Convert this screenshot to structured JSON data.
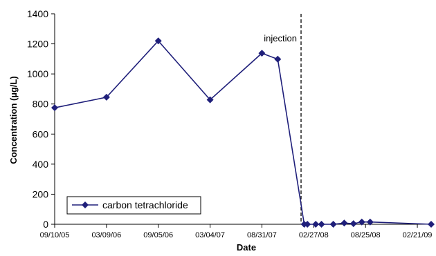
{
  "chart_data": {
    "type": "line",
    "title": "",
    "xlabel": "Date",
    "ylabel": "Concentration (µg/L)",
    "x_scale": "date",
    "xlim": [
      "2005-09-10",
      "2009-04-10"
    ],
    "ylim": [
      0,
      1400
    ],
    "y_ticks": [
      0,
      200,
      400,
      600,
      800,
      1000,
      1200,
      1400
    ],
    "x_ticks": [
      "2005-09-10",
      "2006-03-09",
      "2006-09-05",
      "2007-03-04",
      "2007-08-31",
      "2008-02-27",
      "2008-08-25",
      "2009-02-21"
    ],
    "x_tick_labels": [
      "09/10/05",
      "03/09/06",
      "09/05/06",
      "03/04/07",
      "08/31/07",
      "02/27/08",
      "08/25/08",
      "02/21/09"
    ],
    "grid": false,
    "legend": {
      "placement": "bottom-left",
      "entries": [
        "carbon tetrachloride"
      ]
    },
    "colors": {
      "series": "#1f1f7a",
      "axis": "#000000",
      "annotation_line": "#000000"
    },
    "annotations": [
      {
        "type": "vline",
        "x": "2008-01-14",
        "label": "injection"
      }
    ],
    "series": [
      {
        "name": "carbon tetrachloride",
        "marker": "diamond",
        "x": [
          "2005-09-10",
          "2006-03-09",
          "2006-09-05",
          "2007-03-04",
          "2007-08-31",
          "2007-10-25",
          "2008-01-25",
          "2008-02-05",
          "2008-03-05",
          "2008-03-25",
          "2008-05-05",
          "2008-06-12",
          "2008-07-14",
          "2008-08-12",
          "2008-09-10",
          "2009-04-10"
        ],
        "y": [
          775,
          845,
          1220,
          828,
          1138,
          1098,
          0,
          0,
          0,
          0,
          0,
          8,
          4,
          15,
          15,
          0
        ]
      }
    ]
  }
}
